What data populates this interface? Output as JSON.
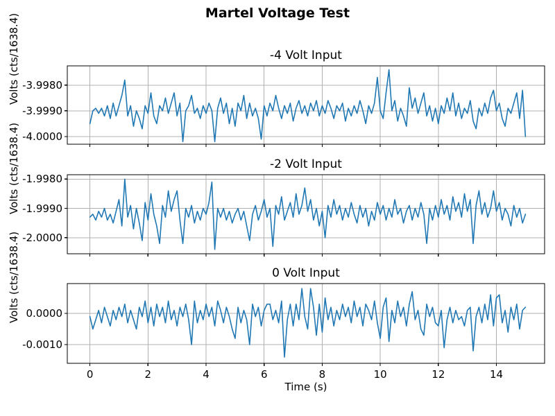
{
  "figure": {
    "title": "Martel Voltage Test",
    "background": "#ffffff"
  },
  "style": {
    "line_color": "#1f77b4",
    "grid_color": "#b0b0b0",
    "spine_color": "#000000",
    "text_color": "#000000"
  },
  "chart_data": [
    {
      "type": "line",
      "title": "-4 Volt Input",
      "ylabel": "Volts (cts/1638.4)",
      "x_start": 0.0,
      "x_step": 0.1,
      "x_end": 15.0,
      "xlim": [
        -0.78,
        15.66
      ],
      "xticks": [
        0,
        2,
        4,
        6,
        8,
        10,
        12,
        14
      ],
      "ylim": [
        -4.0003,
        -3.99725
      ],
      "yticks": [
        -3.998,
        -3.999,
        -4.0
      ],
      "ytick_labels": [
        "-3.9980",
        "-3.9990",
        "-4.0000"
      ],
      "grid": true,
      "legend": null,
      "values": [
        -3.9995,
        -3.999,
        -3.9989,
        -3.9991,
        -3.9989,
        -3.9992,
        -3.9988,
        -3.9993,
        -3.9987,
        -3.9992,
        -3.9988,
        -3.9984,
        -3.9978,
        -3.9992,
        -3.9988,
        -3.9996,
        -3.999,
        -3.9993,
        -3.9997,
        -3.9988,
        -3.9991,
        -3.9983,
        -3.9992,
        -3.9995,
        -3.9988,
        -3.999,
        -3.9985,
        -3.9991,
        -3.9987,
        -3.9983,
        -3.9992,
        -3.9987,
        -4.0002,
        -3.999,
        -3.9988,
        -3.9984,
        -3.9991,
        -3.9989,
        -3.9993,
        -3.9988,
        -3.9991,
        -3.9987,
        -3.999,
        -4.0002,
        -3.9989,
        -3.9985,
        -3.9991,
        -3.9987,
        -3.9995,
        -3.9989,
        -3.9996,
        -3.9987,
        -3.999,
        -3.9984,
        -3.9993,
        -3.9987,
        -3.9992,
        -3.9989,
        -3.9993,
        -4.0001,
        -3.9988,
        -3.9992,
        -3.9987,
        -3.999,
        -3.9984,
        -3.9989,
        -3.9993,
        -3.9988,
        -3.9991,
        -3.9987,
        -3.9994,
        -3.9989,
        -3.9986,
        -3.9991,
        -3.9988,
        -3.9992,
        -3.9987,
        -3.999,
        -3.9986,
        -3.9992,
        -3.9988,
        -3.9991,
        -3.9986,
        -3.9989,
        -3.9993,
        -3.9988,
        -3.999,
        -3.9987,
        -3.9994,
        -3.9989,
        -3.9992,
        -3.9988,
        -3.9991,
        -3.9986,
        -3.999,
        -3.9995,
        -3.9988,
        -3.9991,
        -3.9987,
        -3.9977,
        -3.999,
        -3.9993,
        -3.9983,
        -3.9974,
        -3.999,
        -3.9986,
        -3.9994,
        -3.9989,
        -3.9992,
        -3.9996,
        -3.9981,
        -3.9989,
        -3.9985,
        -3.9991,
        -3.9987,
        -3.9983,
        -3.9992,
        -3.9988,
        -3.9994,
        -3.9989,
        -3.9995,
        -3.9988,
        -3.9991,
        -3.9985,
        -3.999,
        -3.9983,
        -3.9992,
        -3.9987,
        -3.9993,
        -3.9989,
        -3.9991,
        -3.9986,
        -3.9994,
        -3.9997,
        -3.9989,
        -3.9992,
        -3.9987,
        -3.9991,
        -3.9985,
        -3.9982,
        -3.999,
        -3.9987,
        -3.9993,
        -3.9996,
        -3.9989,
        -3.9991,
        -3.9987,
        -3.9983,
        -3.9993,
        -3.9982,
        -4.0
      ]
    },
    {
      "type": "line",
      "title": "-2 Volt Input",
      "ylabel": "Volts (cts/1638.4)",
      "x_start": 0.0,
      "x_step": 0.1,
      "x_end": 15.0,
      "xlim": [
        -0.78,
        15.66
      ],
      "xticks": [
        0,
        2,
        4,
        6,
        8,
        10,
        12,
        14
      ],
      "ylim": [
        -2.00055,
        -1.99785
      ],
      "yticks": [
        -1.998,
        -1.999,
        -2.0
      ],
      "ytick_labels": [
        "-1.9980",
        "-1.9990",
        "-2.0000"
      ],
      "grid": true,
      "legend": null,
      "values": [
        -1.9993,
        -1.9992,
        -1.9994,
        -1.9991,
        -1.9993,
        -1.999,
        -1.9994,
        -1.9992,
        -1.9995,
        -1.9991,
        -1.9987,
        -1.9996,
        -1.998,
        -1.9993,
        -1.9989,
        -1.9997,
        -1.999,
        -1.9995,
        -2.0001,
        -1.9988,
        -1.9994,
        -1.9985,
        -1.9992,
        -1.9996,
        -2.0002,
        -1.9989,
        -1.9993,
        -1.9984,
        -1.9991,
        -1.9987,
        -1.9984,
        -1.9994,
        -2.0002,
        -1.999,
        -1.9993,
        -1.9989,
        -1.9995,
        -1.9991,
        -1.9994,
        -1.999,
        -1.9992,
        -1.9988,
        -1.9981,
        -2.0004,
        -1.999,
        -1.9993,
        -1.999,
        -1.9994,
        -1.9991,
        -1.9995,
        -1.9992,
        -1.999,
        -1.9994,
        -1.9991,
        -1.9996,
        -2.0001,
        -1.9992,
        -1.9989,
        -1.9994,
        -1.9991,
        -1.9987,
        -1.9993,
        -1.999,
        -2.0003,
        -1.9989,
        -1.9992,
        -1.9986,
        -1.9994,
        -1.9991,
        -1.9988,
        -1.9993,
        -1.9985,
        -1.9992,
        -1.9989,
        -1.9983,
        -1.9991,
        -1.9987,
        -1.9994,
        -1.999,
        -1.9996,
        -1.9991,
        -2.0,
        -1.9989,
        -1.9993,
        -1.9987,
        -1.9992,
        -1.9989,
        -1.9994,
        -1.999,
        -1.9993,
        -1.9988,
        -1.9992,
        -1.9995,
        -1.9989,
        -1.9993,
        -1.999,
        -1.9996,
        -1.9991,
        -1.9994,
        -1.9988,
        -1.9992,
        -1.9989,
        -1.9994,
        -1.999,
        -1.9993,
        -1.9987,
        -1.9992,
        -1.999,
        -1.9995,
        -1.9991,
        -1.9989,
        -1.9994,
        -1.999,
        -1.9993,
        -1.9988,
        -1.9992,
        -2.0002,
        -1.999,
        -1.9994,
        -1.9989,
        -1.9993,
        -1.9987,
        -1.9992,
        -1.9989,
        -1.9994,
        -1.9986,
        -1.9991,
        -1.9988,
        -1.9993,
        -1.9985,
        -1.9991,
        -1.9987,
        -2.0002,
        -1.9989,
        -1.9984,
        -1.9992,
        -1.9988,
        -1.9993,
        -1.999,
        -1.9984,
        -1.9991,
        -1.9988,
        -1.9994,
        -1.999,
        -1.9992,
        -1.9996,
        -1.9989,
        -1.9993,
        -1.999,
        -1.9995,
        -1.9992
      ]
    },
    {
      "type": "line",
      "title": "0 Volt Input",
      "ylabel": "Volts (cts/1638.4)",
      "xlabel": "Time (s)",
      "x_start": 0.0,
      "x_step": 0.1,
      "x_end": 15.0,
      "xlim": [
        -0.78,
        15.66
      ],
      "xticks": [
        0,
        2,
        4,
        6,
        8,
        10,
        12,
        14
      ],
      "xtick_labels": [
        "0",
        "2",
        "4",
        "6",
        "8",
        "10",
        "12",
        "14"
      ],
      "ylim": [
        -0.0016,
        0.00096
      ],
      "yticks": [
        0.0,
        -0.001
      ],
      "ytick_labels": [
        "0.0000",
        "-0.0010"
      ],
      "grid": true,
      "legend": null,
      "values": [
        -0.0001,
        -0.0005,
        -0.0002,
        0.0001,
        -0.0003,
        0.0002,
        -0.0001,
        -0.0004,
        0.0001,
        -0.0002,
        0.0002,
        -0.0001,
        0.0003,
        -0.0003,
        0.0001,
        -0.0002,
        -0.0005,
        0.0002,
        -0.0001,
        0.0004,
        -0.0003,
        0.0002,
        -0.0004,
        0.0003,
        -0.0001,
        0.0002,
        -0.0003,
        0.0004,
        -0.0002,
        0.0001,
        -0.0004,
        0.0002,
        -0.0001,
        0.0003,
        -0.0002,
        -0.001,
        0.0004,
        -0.0003,
        0.0001,
        -0.0002,
        0.0003,
        -0.0001,
        0.0002,
        -0.0004,
        0.0004,
        0.0001,
        -0.0003,
        0.0002,
        -0.0001,
        -0.0005,
        -0.0008,
        0.0002,
        -0.0003,
        0.0001,
        -0.0002,
        -0.001,
        0.0003,
        -0.0001,
        0.0002,
        -0.0004,
        0.0001,
        0.0003,
        0.0003,
        -0.0002,
        0.0001,
        -0.0003,
        0.0004,
        -0.0014,
        -0.0002,
        0.0003,
        -0.0004,
        0.0003,
        -0.0002,
        0.0008,
        -0.0001,
        -0.0005,
        0.0008,
        0.0002,
        -0.0007,
        0.0003,
        -0.0006,
        0.0005,
        -0.0002,
        0.0002,
        -0.0004,
        0.0001,
        -0.0002,
        0.0003,
        -0.0001,
        0.0002,
        -0.0003,
        0.0004,
        -0.0001,
        0.0002,
        -0.0004,
        0.0003,
        0.0001,
        -0.0002,
        0.0004,
        -0.0003,
        -0.0008,
        0.0002,
        0.0005,
        -0.0009,
        0.0001,
        -0.0003,
        0.0004,
        -0.0001,
        0.0002,
        -0.0004,
        0.0003,
        0.0007,
        -0.0002,
        0.0001,
        -0.0005,
        -0.0007,
        0.0003,
        -0.0001,
        0.0002,
        -0.0003,
        -0.0004,
        0.0001,
        -0.0011,
        -0.0002,
        0.0002,
        -0.0003,
        0.0001,
        -0.0002,
        -0.0001,
        -0.0004,
        0.0001,
        0.0002,
        -0.0012,
        -0.0001,
        0.0002,
        -0.0003,
        0.0003,
        -0.0002,
        0.0006,
        -0.0004,
        0.0005,
        0.0006,
        -0.0003,
        0.0001,
        -0.0006,
        0.0002,
        -0.0002,
        0.0003,
        -0.0005,
        0.0001,
        0.0002
      ]
    }
  ]
}
